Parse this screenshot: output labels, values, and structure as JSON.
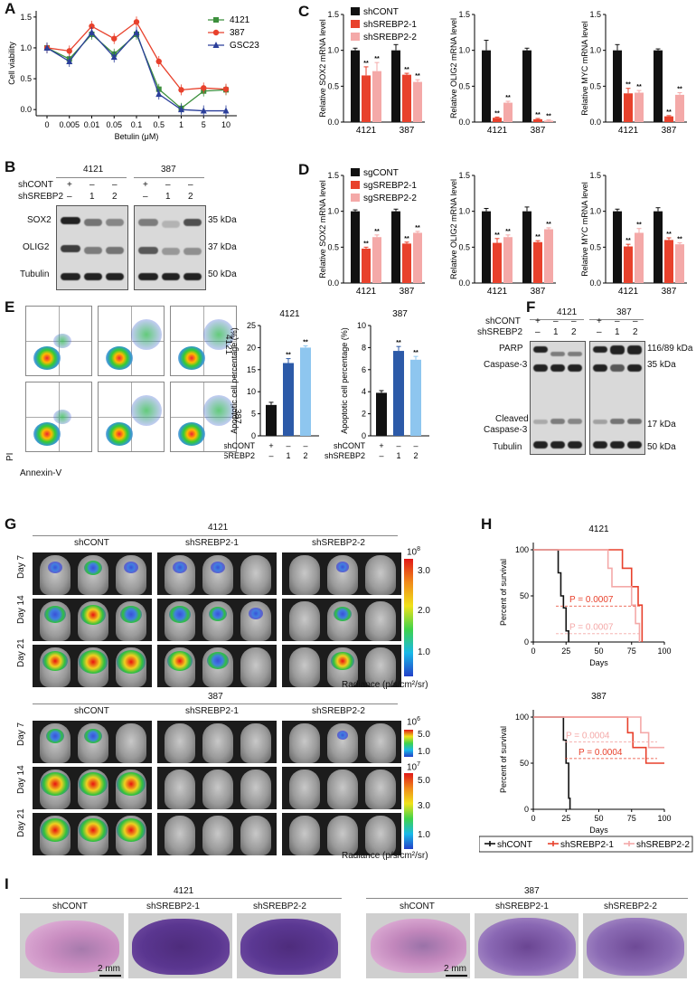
{
  "panels": {
    "A": "A",
    "B": "B",
    "C": "C",
    "D": "D",
    "E": "E",
    "F": "F",
    "G": "G",
    "H": "H",
    "I": "I"
  },
  "colors": {
    "green": "#3c8f3c",
    "red": "#e8412c",
    "blue": "#2b3f9a",
    "black": "#111111",
    "pink": "#f4a9a8",
    "lightblue": "#8ec6ef",
    "darkblue": "#2c5aa8"
  },
  "chart_data": [
    {
      "id": "A",
      "type": "line",
      "title": "",
      "xlabel": "Betulin (μM)",
      "ylabel": "Cell viability",
      "categories": [
        "0",
        "0.005",
        "0.01",
        "0.05",
        "0.1",
        "0.5",
        "1",
        "5",
        "10"
      ],
      "ylim": [
        -0.1,
        1.6
      ],
      "yticks": [
        "0.0",
        "0.5",
        "1.0",
        "1.5"
      ],
      "series": [
        {
          "name": "4121",
          "color": "#3c8f3c",
          "marker": "square",
          "values": [
            1.0,
            0.82,
            1.22,
            0.9,
            1.22,
            0.33,
            0.02,
            0.3,
            0.32
          ]
        },
        {
          "name": "387",
          "color": "#e8412c",
          "marker": "circle",
          "values": [
            1.0,
            0.95,
            1.35,
            1.15,
            1.42,
            0.78,
            0.32,
            0.35,
            0.33
          ]
        },
        {
          "name": "GSC23",
          "color": "#2b3f9a",
          "marker": "triangle",
          "values": [
            1.0,
            0.78,
            1.25,
            0.85,
            1.25,
            0.25,
            0.0,
            -0.02,
            -0.02
          ]
        }
      ]
    },
    {
      "id": "C1",
      "type": "bar",
      "ylabel": "Relative SOX2 mRNA level",
      "categories": [
        "4121",
        "387"
      ],
      "ylim": [
        0,
        1.5
      ],
      "yticks": [
        "0.0",
        "0.5",
        "1.0",
        "1.5"
      ],
      "series": [
        {
          "name": "shCONT",
          "values": [
            1.0,
            1.0
          ],
          "err": [
            0.03,
            0.08
          ]
        },
        {
          "name": "shSREBP2-1",
          "values": [
            0.65,
            0.66
          ],
          "err": [
            0.12,
            0.02
          ]
        },
        {
          "name": "shSREBP2-2",
          "values": [
            0.71,
            0.56
          ],
          "err": [
            0.12,
            0.03
          ]
        }
      ],
      "sig": [
        "**",
        "**",
        "**",
        "**"
      ]
    },
    {
      "id": "C2",
      "type": "bar",
      "ylabel": "Relative OLIG2 mRNA level",
      "categories": [
        "4121",
        "387"
      ],
      "ylim": [
        0,
        1.5
      ],
      "yticks": [
        "0.0",
        "0.5",
        "1.0",
        "1.5"
      ],
      "series": [
        {
          "name": "shCONT",
          "values": [
            1.0,
            1.0
          ],
          "err": [
            0.14,
            0.03
          ]
        },
        {
          "name": "shSREBP2-1",
          "values": [
            0.06,
            0.04
          ],
          "err": [
            0.01,
            0.01
          ]
        },
        {
          "name": "shSREBP2-2",
          "values": [
            0.27,
            0.02
          ],
          "err": [
            0.02,
            0.01
          ]
        }
      ],
      "sig": [
        "**",
        "**",
        "**",
        "**"
      ]
    },
    {
      "id": "C3",
      "type": "bar",
      "ylabel": "Relative MYC mRNA level",
      "categories": [
        "4121",
        "387"
      ],
      "ylim": [
        0,
        1.5
      ],
      "yticks": [
        "0.0",
        "0.5",
        "1.0",
        "1.5"
      ],
      "series": [
        {
          "name": "shCONT",
          "values": [
            1.0,
            1.0
          ],
          "err": [
            0.08,
            0.02
          ]
        },
        {
          "name": "shSREBP2-1",
          "values": [
            0.4,
            0.08
          ],
          "err": [
            0.07,
            0.01
          ]
        },
        {
          "name": "shSREBP2-2",
          "values": [
            0.41,
            0.38
          ],
          "err": [
            0.03,
            0.03
          ]
        }
      ],
      "sig": [
        "**",
        "**",
        "**",
        "**"
      ]
    },
    {
      "id": "D1",
      "type": "bar",
      "ylabel": "Relative SOX2 mRNA level",
      "categories": [
        "4121",
        "387"
      ],
      "ylim": [
        0,
        1.5
      ],
      "yticks": [
        "0.0",
        "0.5",
        "1.0",
        "1.5"
      ],
      "series": [
        {
          "name": "sgCONT",
          "values": [
            1.0,
            1.0
          ],
          "err": [
            0.02,
            0.03
          ]
        },
        {
          "name": "sgSREBP2-1",
          "values": [
            0.48,
            0.55
          ],
          "err": [
            0.02,
            0.02
          ]
        },
        {
          "name": "sgSREBP2-2",
          "values": [
            0.64,
            0.7
          ],
          "err": [
            0.03,
            0.02
          ]
        }
      ],
      "sig": [
        "**",
        "**",
        "**",
        "**"
      ]
    },
    {
      "id": "D2",
      "type": "bar",
      "ylabel": "Relative OLIG2 mRNA level",
      "categories": [
        "4121",
        "387"
      ],
      "ylim": [
        0,
        1.5
      ],
      "yticks": [
        "0.0",
        "0.5",
        "1.0",
        "1.5"
      ],
      "series": [
        {
          "name": "sgCONT",
          "values": [
            1.0,
            1.0
          ],
          "err": [
            0.04,
            0.06
          ]
        },
        {
          "name": "sgSREBP2-1",
          "values": [
            0.56,
            0.57
          ],
          "err": [
            0.06,
            0.02
          ]
        },
        {
          "name": "sgSREBP2-2",
          "values": [
            0.64,
            0.75
          ],
          "err": [
            0.03,
            0.02
          ]
        }
      ],
      "sig": [
        "**",
        "**",
        "**",
        "**"
      ]
    },
    {
      "id": "D3",
      "type": "bar",
      "ylabel": "Relative MYC mRNA level",
      "categories": [
        "4121",
        "387"
      ],
      "ylim": [
        0,
        1.5
      ],
      "yticks": [
        "0.0",
        "0.5",
        "1.0",
        "1.5"
      ],
      "series": [
        {
          "name": "sgCONT",
          "values": [
            1.0,
            1.0
          ],
          "err": [
            0.03,
            0.05
          ]
        },
        {
          "name": "sgSREBP2-1",
          "values": [
            0.51,
            0.6
          ],
          "err": [
            0.03,
            0.03
          ]
        },
        {
          "name": "sgSREBP2-2",
          "values": [
            0.7,
            0.54
          ],
          "err": [
            0.06,
            0.02
          ]
        }
      ],
      "sig": [
        "**",
        "**",
        "**",
        "**"
      ]
    },
    {
      "id": "E1",
      "type": "bar",
      "title": "4121",
      "ylabel": "Apoptotic cell percentage (%)",
      "categories": [
        "shCONT",
        "1",
        "2"
      ],
      "ylim": [
        0,
        25
      ],
      "yticks": [
        "0",
        "5",
        "10",
        "15",
        "20",
        "25"
      ],
      "values": [
        7,
        16.5,
        20
      ],
      "err": [
        0.6,
        1.0,
        0.4
      ],
      "sig": [
        "",
        "**",
        "**"
      ],
      "colors": [
        "#111111",
        "#2c5aa8",
        "#8ec6ef"
      ]
    },
    {
      "id": "E2",
      "type": "bar",
      "title": "387",
      "ylabel": "Apoptotic cell percentage (%)",
      "categories": [
        "shCONT",
        "1",
        "2"
      ],
      "ylim": [
        0,
        10
      ],
      "yticks": [
        "0",
        "2",
        "4",
        "6",
        "8",
        "10"
      ],
      "values": [
        3.9,
        7.7,
        6.9
      ],
      "err": [
        0.2,
        0.4,
        0.3
      ],
      "sig": [
        "",
        "**",
        "**"
      ],
      "colors": [
        "#111111",
        "#2c5aa8",
        "#8ec6ef"
      ]
    },
    {
      "id": "H1",
      "type": "line",
      "title": "4121",
      "xlabel": "Days",
      "ylabel": "Percent of survival",
      "xlim": [
        0,
        100
      ],
      "ylim": [
        0,
        100
      ],
      "xticks": [
        "0",
        "25",
        "50",
        "75",
        "100"
      ],
      "yticks": [
        "0",
        "50",
        "100"
      ],
      "series": [
        {
          "name": "shCONT",
          "color": "#111111",
          "x": [
            0,
            19,
            19,
            21,
            21,
            23,
            23,
            25,
            25,
            27,
            27
          ],
          "y": [
            100,
            100,
            75,
            75,
            50,
            50,
            37,
            37,
            12,
            12,
            0
          ]
        },
        {
          "name": "shSREBP2-1",
          "color": "#e8412c",
          "x": [
            0,
            38,
            38,
            68,
            68,
            75,
            75,
            80,
            80,
            83,
            83
          ],
          "y": [
            100,
            100,
            100,
            100,
            80,
            80,
            60,
            60,
            40,
            40,
            0
          ]
        },
        {
          "name": "shSREBP2-2",
          "color": "#f4a9a8",
          "x": [
            0,
            57,
            57,
            60,
            60,
            75,
            75,
            78,
            78,
            81,
            81
          ],
          "y": [
            100,
            100,
            80,
            80,
            60,
            60,
            40,
            40,
            20,
            20,
            0
          ]
        }
      ],
      "annotations": [
        "P = 0.0007",
        "P = 0.0007"
      ]
    },
    {
      "id": "H2",
      "type": "line",
      "title": "387",
      "xlabel": "Days",
      "ylabel": "Percent of survival",
      "xlim": [
        0,
        100
      ],
      "ylim": [
        0,
        100
      ],
      "xticks": [
        "0",
        "25",
        "50",
        "75",
        "100"
      ],
      "yticks": [
        "0",
        "50",
        "100"
      ],
      "series": [
        {
          "name": "shCONT",
          "color": "#111111",
          "x": [
            0,
            23,
            23,
            25,
            25,
            27,
            27,
            28,
            28
          ],
          "y": [
            100,
            100,
            75,
            75,
            50,
            50,
            12,
            12,
            0
          ]
        },
        {
          "name": "shSREBP2-1",
          "color": "#e8412c",
          "x": [
            0,
            72,
            72,
            76,
            76,
            86,
            86,
            100
          ],
          "y": [
            100,
            100,
            83,
            83,
            67,
            67,
            50,
            50
          ]
        },
        {
          "name": "shSREBP2-2",
          "color": "#f4a9a8",
          "x": [
            0,
            82,
            82,
            88,
            88,
            100
          ],
          "y": [
            100,
            100,
            83,
            83,
            67,
            67
          ]
        }
      ],
      "annotations": [
        "P = 0.0004",
        "P = 0.0004"
      ],
      "legend": [
        "shCONT",
        "shSREBP2-1",
        "shSREBP2-2"
      ]
    }
  ],
  "panelB": {
    "cells": [
      "4121",
      "387"
    ],
    "row_labels": [
      "shCONT",
      "shSREBP2"
    ],
    "lanes": [
      "+",
      "–",
      "–",
      "1",
      "2"
    ],
    "proteins": [
      "SOX2",
      "OLIG2",
      "Tubulin"
    ],
    "kda": [
      "35 kDa",
      "37 kDa",
      "50 kDa"
    ]
  },
  "panelE": {
    "axis_y": "PI",
    "axis_x": "Annexin-V",
    "row_labels": [
      "4121",
      "387"
    ],
    "group_labels": [
      "shCONT",
      "shSREBP2"
    ],
    "lanes": [
      "+",
      "–",
      "–",
      "1",
      "2"
    ]
  },
  "panelF": {
    "cells": [
      "4121",
      "387"
    ],
    "row_labels": [
      "shCONT",
      "shSREBP2"
    ],
    "proteins": [
      "PARP",
      "Caspase-3",
      "Cleaved",
      "Caspase-3",
      "Tubulin"
    ],
    "kda": [
      "116/89 kDa",
      "35 kDa",
      "17 kDa",
      "50 kDa"
    ]
  },
  "panelG": {
    "top_cell": "4121",
    "bottom_cell": "387",
    "groups": [
      "shCONT",
      "shSREBP2-1",
      "shSREBP2-2"
    ],
    "days": [
      "Day 7",
      "Day 14",
      "Day 21"
    ],
    "scale_top": {
      "exp": "10",
      "pow": "8",
      "ticks": [
        "3.0",
        "2.0",
        "1.0"
      ]
    },
    "scale_bot1": {
      "exp": "10",
      "pow": "6",
      "ticks": [
        "5.0",
        "1.0"
      ]
    },
    "scale_bot2": {
      "exp": "10",
      "pow": "7",
      "ticks": [
        "5.0",
        "3.0",
        "1.0"
      ]
    },
    "radiance": "Radiance (p/s/cm²/sr)"
  },
  "panelI": {
    "left_cell": "4121",
    "right_cell": "387",
    "groups": [
      "shCONT",
      "shSREBP2-1",
      "shSREBP2-2"
    ],
    "scalebar": "2 mm"
  }
}
